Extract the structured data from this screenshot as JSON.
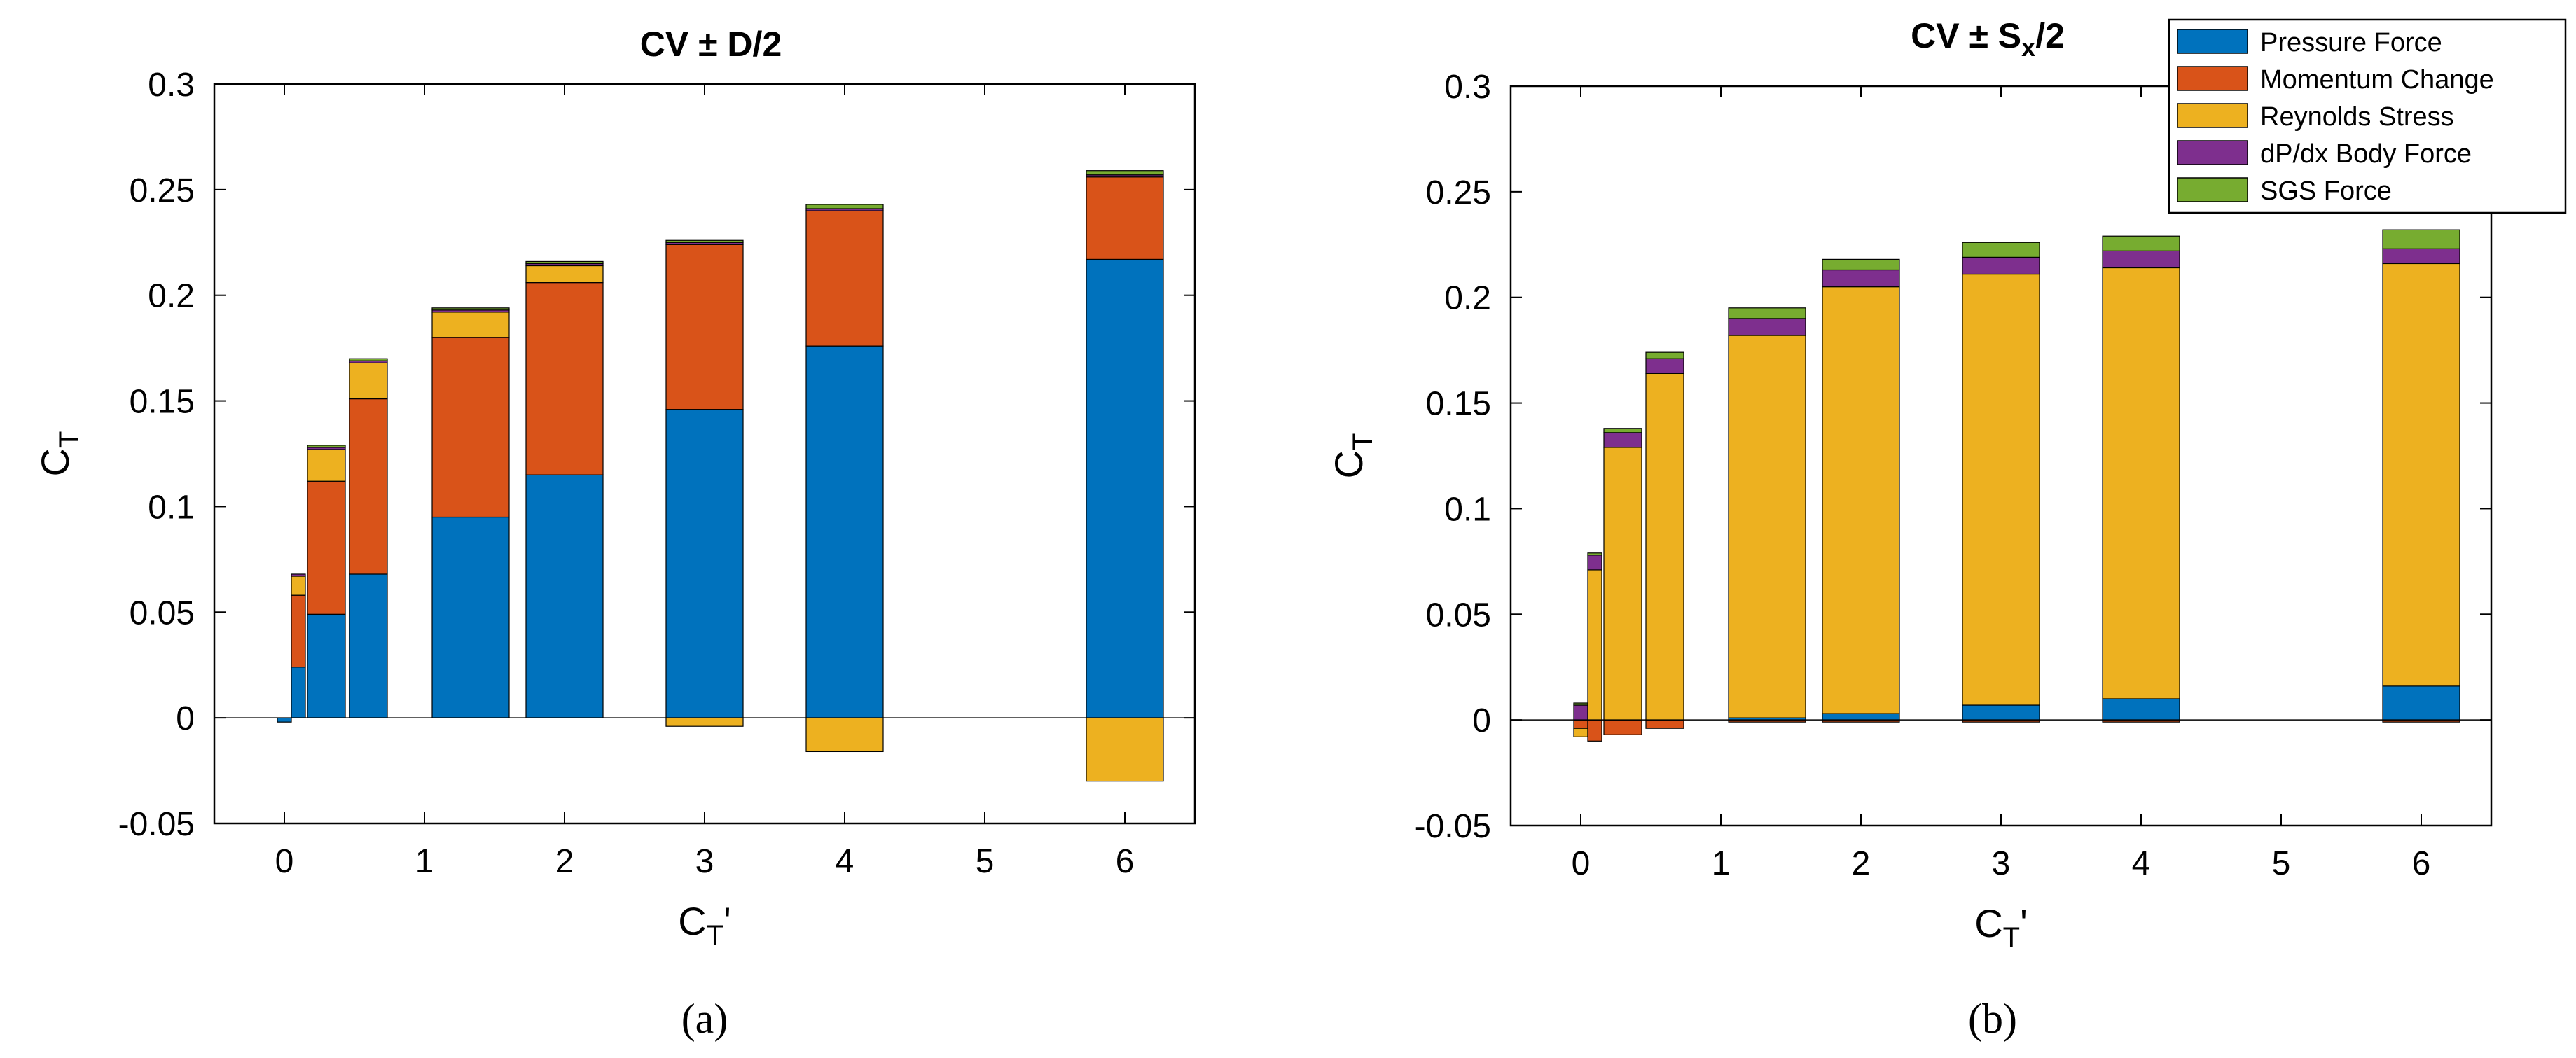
{
  "figure": {
    "panel_labels": [
      "(a)",
      "(b)"
    ]
  },
  "legend": {
    "entries": [
      {
        "name": "Pressure Force",
        "color": "#0072BD"
      },
      {
        "name": "Momentum Change",
        "color": "#D95319"
      },
      {
        "name": "Reynolds Stress",
        "color": "#EDB120"
      },
      {
        "name": "dP/dx Body Force",
        "color": "#7E2F8E"
      },
      {
        "name": "SGS Force",
        "color": "#77AC30"
      }
    ]
  },
  "chart_data": [
    {
      "type": "bar",
      "stacked": true,
      "title": "CV ± D/2",
      "title_main": "CV ± D",
      "title_suffix": "/2",
      "xlabel": "C_T'",
      "xlabel_main": "C",
      "xlabel_sub": "T",
      "xlabel_suffix": "'",
      "ylabel": "C_T",
      "ylabel_main": "C",
      "ylabel_sub": "T",
      "xlim": [
        -0.5,
        6.5
      ],
      "ylim": [
        -0.05,
        0.3
      ],
      "xticks": [
        0,
        1,
        2,
        3,
        4,
        5,
        6
      ],
      "xtick_labels": [
        "0",
        "1",
        "2",
        "3",
        "4",
        "5",
        "6"
      ],
      "yticks": [
        -0.05,
        0,
        0.05,
        0.1,
        0.15,
        0.2,
        0.25,
        0.3
      ],
      "ytick_labels": [
        "-0.05",
        "0",
        "0.05",
        "0.1",
        "0.15",
        "0.2",
        "0.25",
        "0.3"
      ],
      "x": [
        0.0,
        0.1,
        0.3,
        0.6,
        1.33,
        2.0,
        3.0,
        4.0,
        6.0
      ],
      "widths": [
        0.1,
        0.1,
        0.27,
        0.27,
        0.55,
        0.55,
        0.55,
        0.55,
        0.55
      ],
      "series": [
        {
          "name": "Pressure Force",
          "values": [
            -0.002,
            0.024,
            0.049,
            0.068,
            0.095,
            0.115,
            0.146,
            0.176,
            0.217
          ]
        },
        {
          "name": "Momentum Change",
          "values": [
            0.0,
            0.034,
            0.063,
            0.083,
            0.085,
            0.091,
            0.078,
            0.064,
            0.039
          ]
        },
        {
          "name": "Reynolds Stress",
          "values": [
            0.0,
            0.009,
            0.015,
            0.017,
            0.012,
            0.008,
            -0.004,
            -0.016,
            -0.03
          ]
        },
        {
          "name": "dP/dx Body Force",
          "values": [
            0.0,
            0.001,
            0.001,
            0.001,
            0.001,
            0.001,
            0.001,
            0.001,
            0.001
          ]
        },
        {
          "name": "SGS Force",
          "values": [
            0.0,
            0.0,
            0.001,
            0.001,
            0.001,
            0.001,
            0.001,
            0.002,
            0.002
          ]
        }
      ]
    },
    {
      "type": "bar",
      "stacked": true,
      "title": "CV ± S_x/2",
      "title_main": "CV ± S",
      "title_sub": "x",
      "title_suffix": "/2",
      "xlabel": "C_T'",
      "xlabel_main": "C",
      "xlabel_sub": "T",
      "xlabel_suffix": "'",
      "ylabel": "C_T",
      "ylabel_main": "C",
      "ylabel_sub": "T",
      "xlim": [
        -0.5,
        6.5
      ],
      "ylim": [
        -0.05,
        0.3
      ],
      "xticks": [
        0,
        1,
        2,
        3,
        4,
        5,
        6
      ],
      "xtick_labels": [
        "0",
        "1",
        "2",
        "3",
        "4",
        "5",
        "6"
      ],
      "yticks": [
        -0.05,
        0,
        0.05,
        0.1,
        0.15,
        0.2,
        0.25,
        0.3
      ],
      "ytick_labels": [
        "-0.05",
        "0",
        "0.05",
        "0.1",
        "0.15",
        "0.2",
        "0.25",
        "0.3"
      ],
      "x": [
        0.0,
        0.1,
        0.3,
        0.6,
        1.33,
        2.0,
        3.0,
        4.0,
        6.0
      ],
      "widths": [
        0.1,
        0.1,
        0.27,
        0.27,
        0.55,
        0.55,
        0.55,
        0.55,
        0.55
      ],
      "series": [
        {
          "name": "Pressure Force",
          "values": [
            0.0,
            0.0,
            0.0,
            0.0,
            0.001,
            0.003,
            0.007,
            0.01,
            0.016
          ]
        },
        {
          "name": "Momentum Change",
          "values": [
            -0.004,
            -0.01,
            -0.007,
            -0.004,
            -0.001,
            -0.001,
            -0.001,
            -0.001,
            -0.001
          ]
        },
        {
          "name": "Reynolds Stress",
          "values": [
            -0.004,
            0.071,
            0.129,
            0.164,
            0.181,
            0.202,
            0.204,
            0.204,
            0.2
          ]
        },
        {
          "name": "dP/dx Body Force",
          "values": [
            0.007,
            0.007,
            0.007,
            0.007,
            0.008,
            0.008,
            0.008,
            0.008,
            0.007
          ]
        },
        {
          "name": "SGS Force",
          "values": [
            0.001,
            0.001,
            0.002,
            0.003,
            0.005,
            0.005,
            0.007,
            0.007,
            0.009
          ]
        }
      ]
    }
  ]
}
